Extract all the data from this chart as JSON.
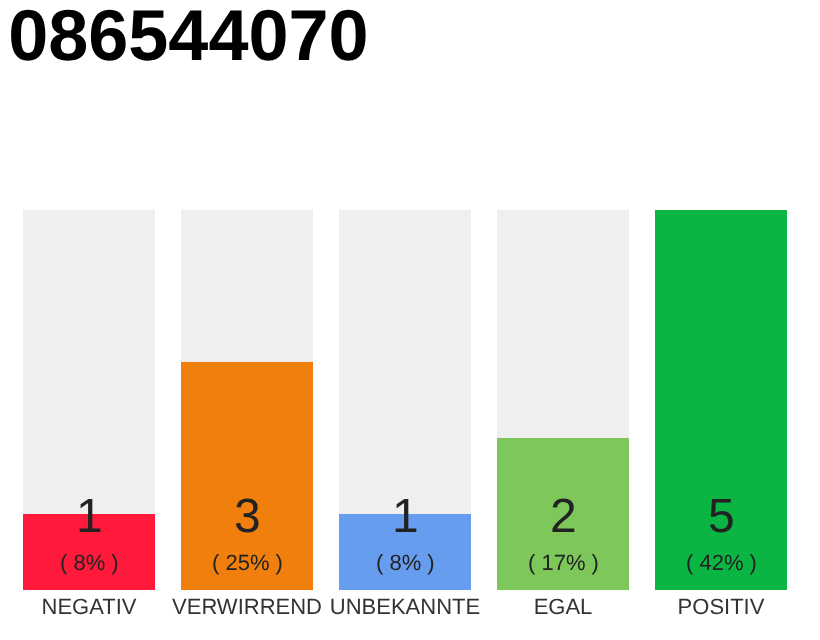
{
  "chart_data": {
    "type": "bar",
    "title": "086544070",
    "stacked": true,
    "categories": [
      "NEGATIV",
      "VERWIRREND",
      "UNBEKANNTE",
      "EGAL",
      "POSITIV"
    ],
    "series": [
      {
        "colors": [
          "#ff1a3c",
          "#f07f0e",
          "#679def",
          "#7ec85b",
          "#0ab543"
        ],
        "values": [
          1,
          3,
          1,
          2,
          5
        ],
        "value_labels": [
          "1",
          "3",
          "1",
          "2",
          "5"
        ]
      },
      {
        "color": "#efefef",
        "values": [
          4,
          2,
          4,
          3,
          0
        ],
        "value_labels": [
          null,
          null,
          null,
          null,
          null
        ]
      }
    ],
    "annotations": [
      "( 8% )",
      "( 25% )",
      "( 8% )",
      "( 17% )",
      "( 42% )"
    ],
    "tick_labels": "x"
  }
}
